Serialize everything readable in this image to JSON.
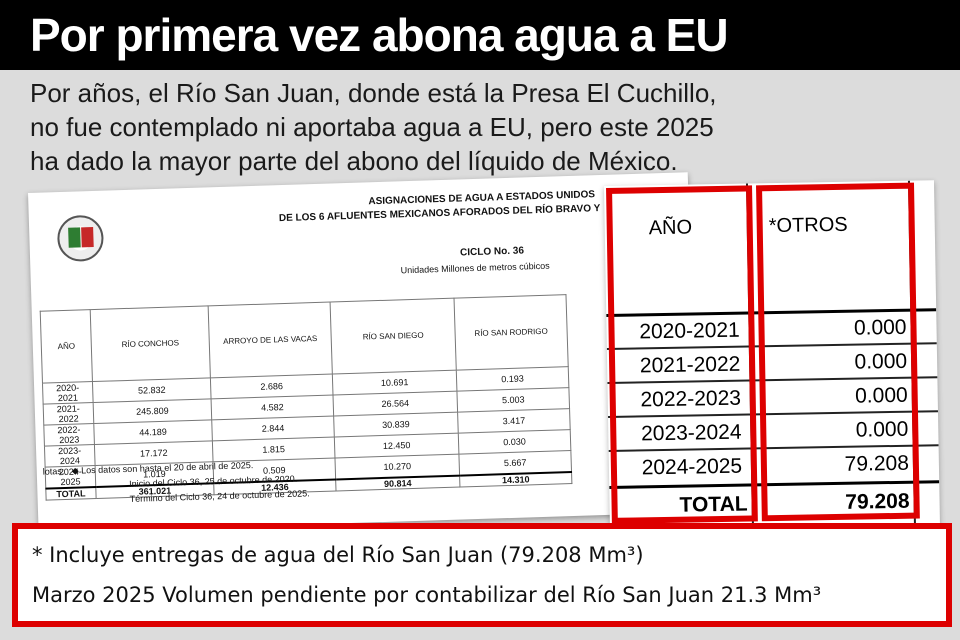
{
  "headline": "Por primera vez abona agua a EU",
  "lead": [
    "Por años, el Río San Juan, donde está la Presa El Cuchillo,",
    "no fue contemplado ni aportaba agua a EU, pero este 2025",
    "ha dado la mayor parte del abono del líquido de México."
  ],
  "document": {
    "title1": "ASIGNACIONES DE AGUA A ESTADOS UNIDOS",
    "title2": "DE LOS 6 AFLUENTES MEXICANOS AFORADOS DEL RÍO BRAVO Y",
    "cycle": "CICLO No. 36",
    "units": "Unidades  Millones de metros cúbicos",
    "columns": [
      "AÑO",
      "RÍO CONCHOS",
      "ARROYO DE LAS VACAS",
      "RÍO SAN DIEGO",
      "RÍO SAN RODRIGO"
    ],
    "rows": [
      [
        "2020-2021",
        "52.832",
        "2.686",
        "10.691",
        "0.193"
      ],
      [
        "2021-2022",
        "245.809",
        "4.582",
        "26.564",
        "5.003"
      ],
      [
        "2022-2023",
        "44.189",
        "2.844",
        "30.839",
        "3.417"
      ],
      [
        "2023-2024",
        "17.172",
        "1.815",
        "12.450",
        "0.030"
      ],
      [
        "2024-2025",
        "1.019",
        "0.509",
        "10.270",
        "5.667"
      ]
    ],
    "total": [
      "TOTAL",
      "361.021",
      "12.436",
      "90.814",
      "14.310"
    ],
    "notes_label": "lotas:",
    "notes": [
      "Los datos son hasta el 20 de abril de 2025.",
      "Inicio del Ciclo 36, 25 de octubre de 2020.",
      "Término del Ciclo 36, 24 de octubre de 2025."
    ]
  },
  "zoom_table": {
    "header_year": "AÑO",
    "header_other": "*OTROS",
    "rows": [
      {
        "year": "2020-2021",
        "value": "0.000"
      },
      {
        "year": "2021-2022",
        "value": "0.000"
      },
      {
        "year": "2022-2023",
        "value": "0.000"
      },
      {
        "year": "2023-2024",
        "value": "0.000"
      },
      {
        "year": "2024-2025",
        "value": "79.208"
      }
    ],
    "total_label": "TOTAL",
    "total_value": "79.208"
  },
  "footnote": {
    "line1": "* Incluye entregas de agua del Río San Juan (79.208 Mm³)",
    "line2": "Marzo 2025 Volumen pendiente por contabilizar del Río San Juan 21.3 Mm³"
  },
  "colors": {
    "highlight": "#dd0000",
    "header_bg": "#000000"
  }
}
